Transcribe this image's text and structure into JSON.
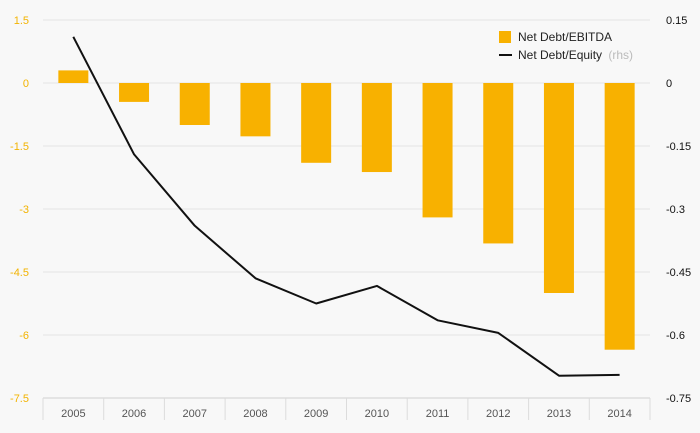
{
  "chart_data": {
    "type": "bar",
    "categories": [
      "2005",
      "2006",
      "2007",
      "2008",
      "2009",
      "2010",
      "2011",
      "2012",
      "2013",
      "2014"
    ],
    "series": [
      {
        "name": "Net Debt/EBITDA",
        "type": "bar",
        "axis": "left",
        "color": "#f8b100",
        "values": [
          0.3,
          -0.45,
          -1.0,
          -1.27,
          -1.9,
          -2.12,
          -3.2,
          -3.82,
          -5.0,
          -6.35
        ]
      },
      {
        "name": "Net Debt/Equity",
        "name_suffix": "(rhs)",
        "type": "line",
        "axis": "right",
        "color": "#111111",
        "values": [
          0.11,
          -0.17,
          -0.34,
          -0.465,
          -0.525,
          -0.483,
          -0.565,
          -0.595,
          -0.697,
          -0.695
        ]
      }
    ],
    "y_left": {
      "ylim": [
        -7.5,
        1.5
      ],
      "ticks": [
        "1.5",
        "0",
        "-1.5",
        "-3",
        "-4.5",
        "-6",
        "-7.5"
      ],
      "color": "#f2b300"
    },
    "y_right": {
      "ylim": [
        -0.75,
        0.15
      ],
      "ticks": [
        "0.15",
        "0",
        "-0.15",
        "-0.3",
        "-0.45",
        "-0.6",
        "-0.75"
      ],
      "color": "#111111"
    },
    "grid": true,
    "legend": "top-right"
  }
}
